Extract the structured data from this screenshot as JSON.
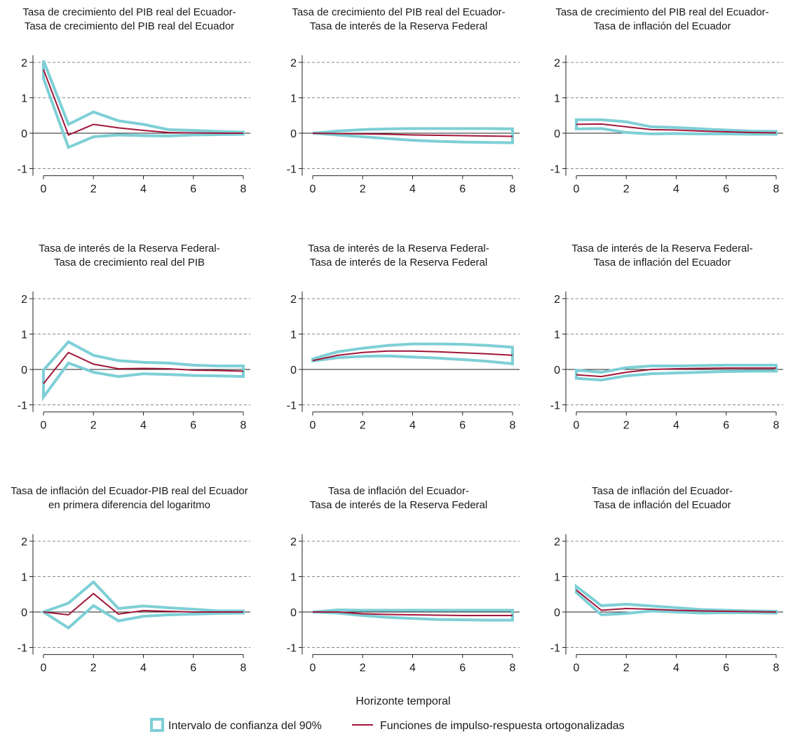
{
  "figure": {
    "xlabel": "Horizonte temporal",
    "legend": {
      "ci_label": "Intervalo de confianza del 90%",
      "irf_label": "Funciones de impulso-respuesta ortogonalizadas"
    },
    "colors": {
      "ci": "#7ecfd6",
      "irf": "#a0163a",
      "grid": "#888888",
      "axis": "#222222",
      "zero": "#222222"
    }
  },
  "chart_data": [
    {
      "type": "line",
      "title": [
        "Tasa de crecimiento del PIB real del Ecuador-",
        "Tasa de crecimiento del PIB real del Ecuador"
      ],
      "x": [
        0,
        1,
        2,
        3,
        4,
        5,
        6,
        7,
        8
      ],
      "xticks": [
        0,
        2,
        4,
        6,
        8
      ],
      "yticks": [
        -1,
        0,
        1,
        2
      ],
      "xlim": [
        0,
        8
      ],
      "ylim": [
        -1.2,
        2.2
      ],
      "series": [
        {
          "role": "irf",
          "values": [
            1.8,
            -0.05,
            0.25,
            0.15,
            0.08,
            0.02,
            0.01,
            0.0,
            0.0
          ]
        },
        {
          "role": "ci_upper",
          "values": [
            2.05,
            0.25,
            0.6,
            0.35,
            0.25,
            0.1,
            0.08,
            0.05,
            0.03
          ]
        },
        {
          "role": "ci_lower",
          "values": [
            1.55,
            -0.4,
            -0.1,
            -0.05,
            -0.07,
            -0.08,
            -0.05,
            -0.04,
            -0.03
          ]
        }
      ]
    },
    {
      "type": "line",
      "title": [
        "Tasa de crecimiento del PIB real del Ecuador-",
        "Tasa de interés de la Reserva Federal"
      ],
      "x": [
        0,
        1,
        2,
        3,
        4,
        5,
        6,
        7,
        8
      ],
      "xticks": [
        0,
        2,
        4,
        6,
        8
      ],
      "yticks": [
        -1,
        0,
        1,
        2
      ],
      "xlim": [
        0,
        8
      ],
      "ylim": [
        -1.2,
        2.2
      ],
      "series": [
        {
          "role": "irf",
          "values": [
            0.0,
            -0.01,
            -0.02,
            -0.03,
            -0.05,
            -0.06,
            -0.07,
            -0.08,
            -0.09
          ]
        },
        {
          "role": "ci_upper",
          "values": [
            0.0,
            0.06,
            0.1,
            0.12,
            0.13,
            0.13,
            0.13,
            0.13,
            0.12
          ]
        },
        {
          "role": "ci_lower",
          "values": [
            0.0,
            -0.05,
            -0.1,
            -0.15,
            -0.2,
            -0.23,
            -0.25,
            -0.26,
            -0.27
          ]
        }
      ]
    },
    {
      "type": "line",
      "title": [
        "Tasa de crecimiento del PIB real del Ecuador-",
        "Tasa de inflación del Ecuador"
      ],
      "x": [
        0,
        1,
        2,
        3,
        4,
        5,
        6,
        7,
        8
      ],
      "xticks": [
        0,
        2,
        4,
        6,
        8
      ],
      "yticks": [
        -1,
        0,
        1,
        2
      ],
      "xlim": [
        0,
        8
      ],
      "ylim": [
        -1.2,
        2.2
      ],
      "series": [
        {
          "role": "irf",
          "values": [
            0.25,
            0.26,
            0.18,
            0.1,
            0.09,
            0.06,
            0.04,
            0.02,
            0.01
          ]
        },
        {
          "role": "ci_upper",
          "values": [
            0.38,
            0.38,
            0.32,
            0.18,
            0.16,
            0.12,
            0.09,
            0.06,
            0.05
          ]
        },
        {
          "role": "ci_lower",
          "values": [
            0.12,
            0.13,
            0.02,
            -0.02,
            -0.01,
            -0.02,
            -0.02,
            -0.03,
            -0.03
          ]
        }
      ]
    },
    {
      "type": "line",
      "title": [
        "Tasa de interés de la Reserva Federal-",
        "Tasa de crecimiento real del PIB"
      ],
      "x": [
        0,
        1,
        2,
        3,
        4,
        5,
        6,
        7,
        8
      ],
      "xticks": [
        0,
        2,
        4,
        6,
        8
      ],
      "yticks": [
        -1,
        0,
        1,
        2
      ],
      "xlim": [
        0,
        8
      ],
      "ylim": [
        -1.2,
        2.2
      ],
      "series": [
        {
          "role": "irf",
          "values": [
            -0.4,
            0.48,
            0.15,
            0.02,
            0.03,
            0.02,
            -0.02,
            -0.03,
            -0.05
          ]
        },
        {
          "role": "ci_upper",
          "values": [
            -0.02,
            0.78,
            0.4,
            0.25,
            0.2,
            0.18,
            0.12,
            0.1,
            0.1
          ]
        },
        {
          "role": "ci_lower",
          "values": [
            -0.78,
            0.18,
            -0.08,
            -0.2,
            -0.12,
            -0.14,
            -0.17,
            -0.18,
            -0.2
          ]
        }
      ]
    },
    {
      "type": "line",
      "title": [
        "Tasa de interés de la Reserva Federal-",
        "Tasa de interés de la Reserva Federal"
      ],
      "x": [
        0,
        1,
        2,
        3,
        4,
        5,
        6,
        7,
        8
      ],
      "xticks": [
        0,
        2,
        4,
        6,
        8
      ],
      "yticks": [
        -1,
        0,
        1,
        2
      ],
      "xlim": [
        0,
        8
      ],
      "ylim": [
        -1.2,
        2.2
      ],
      "series": [
        {
          "role": "irf",
          "values": [
            0.25,
            0.4,
            0.48,
            0.52,
            0.52,
            0.5,
            0.47,
            0.44,
            0.4
          ]
        },
        {
          "role": "ci_upper",
          "values": [
            0.3,
            0.5,
            0.6,
            0.68,
            0.72,
            0.72,
            0.71,
            0.68,
            0.63
          ]
        },
        {
          "role": "ci_lower",
          "values": [
            0.24,
            0.33,
            0.37,
            0.38,
            0.35,
            0.32,
            0.28,
            0.23,
            0.16
          ]
        }
      ]
    },
    {
      "type": "line",
      "title": [
        "Tasa de interés de la Reserva Federal-",
        "Tasa de inflación del Ecuador"
      ],
      "x": [
        0,
        1,
        2,
        3,
        4,
        5,
        6,
        7,
        8
      ],
      "xticks": [
        0,
        2,
        4,
        6,
        8
      ],
      "yticks": [
        -1,
        0,
        1,
        2
      ],
      "xlim": [
        0,
        8
      ],
      "ylim": [
        -1.2,
        2.2
      ],
      "series": [
        {
          "role": "irf",
          "values": [
            -0.15,
            -0.2,
            -0.08,
            0.0,
            0.02,
            0.03,
            0.04,
            0.04,
            0.04
          ]
        },
        {
          "role": "ci_upper",
          "values": [
            -0.02,
            -0.08,
            0.05,
            0.1,
            0.1,
            0.11,
            0.12,
            0.12,
            0.12
          ]
        },
        {
          "role": "ci_lower",
          "values": [
            -0.25,
            -0.3,
            -0.18,
            -0.12,
            -0.1,
            -0.08,
            -0.06,
            -0.05,
            -0.05
          ]
        }
      ]
    },
    {
      "type": "line",
      "title": [
        "Tasa de inflación del Ecuador-PIB real del Ecuador",
        "en primera diferencia del logaritmo"
      ],
      "x": [
        0,
        1,
        2,
        3,
        4,
        5,
        6,
        7,
        8
      ],
      "xticks": [
        0,
        2,
        4,
        6,
        8
      ],
      "yticks": [
        -1,
        0,
        1,
        2
      ],
      "xlim": [
        0,
        8
      ],
      "ylim": [
        -1.2,
        2.2
      ],
      "series": [
        {
          "role": "irf",
          "values": [
            0.0,
            -0.08,
            0.52,
            -0.06,
            0.04,
            0.02,
            0.0,
            0.0,
            0.0
          ]
        },
        {
          "role": "ci_upper",
          "values": [
            0.0,
            0.25,
            0.85,
            0.1,
            0.17,
            0.12,
            0.08,
            0.03,
            0.03
          ]
        },
        {
          "role": "ci_lower",
          "values": [
            0.0,
            -0.45,
            0.18,
            -0.25,
            -0.12,
            -0.08,
            -0.06,
            -0.04,
            -0.03
          ]
        }
      ]
    },
    {
      "type": "line",
      "title": [
        "Tasa de inflación del Ecuador-",
        "Tasa de interés de la Reserva Federal"
      ],
      "x": [
        0,
        1,
        2,
        3,
        4,
        5,
        6,
        7,
        8
      ],
      "xticks": [
        0,
        2,
        4,
        6,
        8
      ],
      "yticks": [
        -1,
        0,
        1,
        2
      ],
      "xlim": [
        0,
        8
      ],
      "ylim": [
        -1.2,
        2.2
      ],
      "series": [
        {
          "role": "irf",
          "values": [
            0.0,
            0.0,
            -0.05,
            -0.07,
            -0.08,
            -0.09,
            -0.1,
            -0.1,
            -0.1
          ]
        },
        {
          "role": "ci_upper",
          "values": [
            0.0,
            0.06,
            0.05,
            0.05,
            0.05,
            0.05,
            0.05,
            0.05,
            0.05
          ]
        },
        {
          "role": "ci_lower",
          "values": [
            0.0,
            -0.03,
            -0.1,
            -0.15,
            -0.18,
            -0.21,
            -0.22,
            -0.23,
            -0.23
          ]
        }
      ]
    },
    {
      "type": "line",
      "title": [
        "Tasa de inflación del Ecuador-",
        "Tasa de inflación del Ecuador"
      ],
      "x": [
        0,
        1,
        2,
        3,
        4,
        5,
        6,
        7,
        8
      ],
      "xticks": [
        0,
        2,
        4,
        6,
        8
      ],
      "yticks": [
        -1,
        0,
        1,
        2
      ],
      "xlim": [
        0,
        8
      ],
      "ylim": [
        -1.2,
        2.2
      ],
      "series": [
        {
          "role": "irf",
          "values": [
            0.62,
            0.05,
            0.1,
            0.08,
            0.05,
            0.03,
            0.02,
            0.01,
            0.0
          ]
        },
        {
          "role": "ci_upper",
          "values": [
            0.72,
            0.18,
            0.22,
            0.17,
            0.12,
            0.07,
            0.05,
            0.03,
            0.02
          ]
        },
        {
          "role": "ci_lower",
          "values": [
            0.55,
            -0.08,
            -0.04,
            0.03,
            0.0,
            -0.03,
            -0.02,
            -0.02,
            -0.03
          ]
        }
      ]
    }
  ]
}
